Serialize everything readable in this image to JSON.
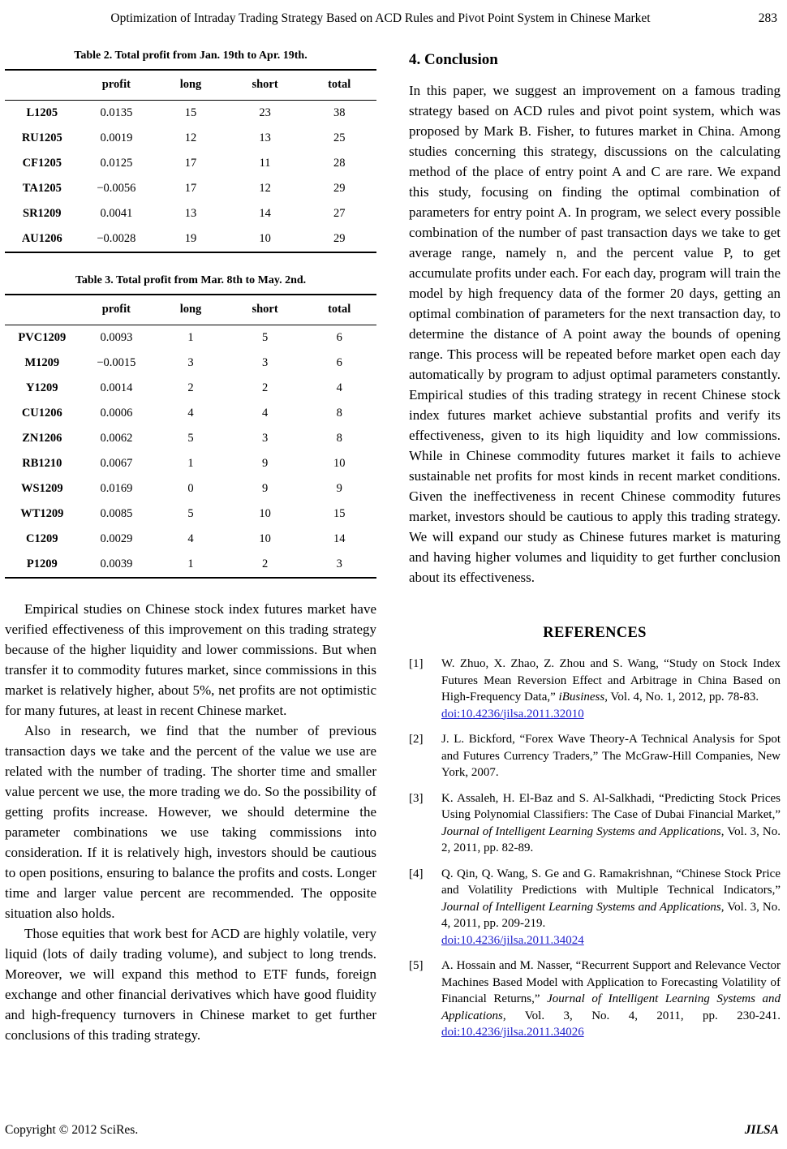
{
  "header": {
    "title": "Optimization of Intraday Trading Strategy Based on ACD Rules and Pivot Point System in Chinese Market",
    "page_number": "283"
  },
  "tables": [
    {
      "caption": "Table 2. Total profit from Jan. 19th to Apr. 19th.",
      "columns": [
        "",
        "profit",
        "long",
        "short",
        "total"
      ],
      "rows": [
        [
          "L1205",
          "0.0135",
          "15",
          "23",
          "38"
        ],
        [
          "RU1205",
          "0.0019",
          "12",
          "13",
          "25"
        ],
        [
          "CF1205",
          "0.0125",
          "17",
          "11",
          "28"
        ],
        [
          "TA1205",
          "−0.0056",
          "17",
          "12",
          "29"
        ],
        [
          "SR1209",
          "0.0041",
          "13",
          "14",
          "27"
        ],
        [
          "AU1206",
          "−0.0028",
          "19",
          "10",
          "29"
        ]
      ]
    },
    {
      "caption": "Table 3. Total profit from Mar. 8th to May. 2nd.",
      "columns": [
        "",
        "profit",
        "long",
        "short",
        "total"
      ],
      "rows": [
        [
          "PVC1209",
          "0.0093",
          "1",
          "5",
          "6"
        ],
        [
          "M1209",
          "−0.0015",
          "3",
          "3",
          "6"
        ],
        [
          "Y1209",
          "0.0014",
          "2",
          "2",
          "4"
        ],
        [
          "CU1206",
          "0.0006",
          "4",
          "4",
          "8"
        ],
        [
          "ZN1206",
          "0.0062",
          "5",
          "3",
          "8"
        ],
        [
          "RB1210",
          "0.0067",
          "1",
          "9",
          "10"
        ],
        [
          "WS1209",
          "0.0169",
          "0",
          "9",
          "9"
        ],
        [
          "WT1209",
          "0.0085",
          "5",
          "10",
          "15"
        ],
        [
          "C1209",
          "0.0029",
          "4",
          "10",
          "14"
        ],
        [
          "P1209",
          "0.0039",
          "1",
          "2",
          "3"
        ]
      ]
    }
  ],
  "left_column": {
    "paragraphs": [
      "Empirical studies on Chinese stock index futures market have verified effectiveness of this improvement on this trading strategy because of the higher liquidity and lower commissions. But when transfer it to commodity futures market, since commissions in this market is relatively higher, about 5%, net profits are not optimistic for many futures, at least in recent Chinese market.",
      "Also in research, we find that the number of previous transaction days we take and the percent of the value we use are related with the number of trading. The shorter time and smaller value percent we use, the more trading we do. So the possibility of getting profits increase. However, we should determine the parameter combinations we use taking commissions into consideration. If it is relatively high, investors should be cautious to open positions, ensuring to balance the profits and costs. Longer time and larger value percent are recommended. The opposite situation also holds.",
      "Those equities that work best for ACD are highly volatile, very liquid (lots of daily trading volume), and subject to long trends. Moreover, we will expand this method to ETF funds, foreign exchange and other financial derivatives which have good fluidity and high-frequency turnovers in Chinese market to get further conclusions of this trading strategy."
    ]
  },
  "conclusion": {
    "heading": "4. Conclusion",
    "body": "In this paper, we suggest an improvement on a famous trading strategy based on ACD rules and pivot point system, which was proposed by Mark B. Fisher, to futures market in China. Among studies concerning this strategy, discussions on the calculating method of the place of entry point A and C are rare. We expand this study, focusing on finding the optimal combination of parameters for entry point A. In program, we select every possible combination of the number of past transaction days we take to get average range, namely n, and the percent value P, to get accumulate profits under each. For each day, program will train the model by high frequency data of the former 20 days, getting an optimal combination of parameters for the next transaction day, to determine the distance of A point away the bounds of opening range. This process will be repeated before market open each day automatically by program to adjust optimal parameters constantly. Empirical studies of this trading strategy in recent Chinese stock index futures market achieve substantial profits and verify its effectiveness, given to its high liquidity and low commissions. While in Chinese commodity futures market it fails to achieve sustainable net profits for most kinds in recent market conditions. Given the ineffectiveness in recent Chinese commodity futures market, investors should be cautious to apply this trading strategy. We will expand our study as Chinese futures market is maturing and having higher volumes and liquidity to get further conclusion about its effectiveness."
  },
  "references": {
    "heading": "REFERENCES",
    "items": [
      {
        "number": "[1]",
        "segments": [
          {
            "t": "W. Zhuo, X. Zhao, Z. Zhou and S. Wang, “Study on Stock Index Futures Mean Reversion Effect and Arbitrage in China Based on High-Frequency Data,” "
          },
          {
            "t": "iBusiness",
            "italic": true
          },
          {
            "t": ", Vol. 4, No. 1, 2012, pp. 78-83. "
          },
          {
            "t": "doi:10.4236/jilsa.2011.32010",
            "link": true,
            "block": true
          }
        ]
      },
      {
        "number": "[2]",
        "segments": [
          {
            "t": "J. L. Bickford, “Forex Wave Theory-A Technical Analysis for Spot and Futures Currency Traders,” The McGraw-Hill Companies, New York, 2007."
          }
        ]
      },
      {
        "number": "[3]",
        "segments": [
          {
            "t": "K. Assaleh, H. El-Baz and S. Al-Salkhadi, “Predicting Stock Prices Using Polynomial Classifiers: The Case of Dubai Financial Market,” "
          },
          {
            "t": "Journal of Intelligent Learning Systems and Applications",
            "italic": true
          },
          {
            "t": ", Vol. 3, No. 2, 2011, pp. 82-89."
          }
        ]
      },
      {
        "number": "[4]",
        "segments": [
          {
            "t": "Q. Qin, Q. Wang, S. Ge and G. Ramakrishnan, “Chinese Stock Price and Volatility Predictions with Multiple Technical Indicators,” "
          },
          {
            "t": "Journal of Intelligent Learning Systems and Applications",
            "italic": true
          },
          {
            "t": ", Vol. 3, No. 4, 2011, pp. 209-219. "
          },
          {
            "t": "doi:10.4236/jilsa.2011.34024",
            "link": true,
            "block": true
          }
        ]
      },
      {
        "number": "[5]",
        "segments": [
          {
            "t": "A. Hossain and M. Nasser, “Recurrent Support and Relevance Vector Machines Based Model with Application to Forecasting Volatility of Financial Returns,” "
          },
          {
            "t": "Journal of Intelligent Learning Systems and Applications",
            "italic": true
          },
          {
            "t": ", Vol. 3, No. 4, 2011, pp. 230-241. "
          },
          {
            "t": "doi:10.4236/jilsa.2011.34026",
            "link": true
          }
        ]
      }
    ]
  },
  "footer": {
    "copyright": "Copyright © 2012 SciRes.",
    "journal": "JILSA"
  },
  "colors": {
    "link_blue": "#2222CC"
  }
}
